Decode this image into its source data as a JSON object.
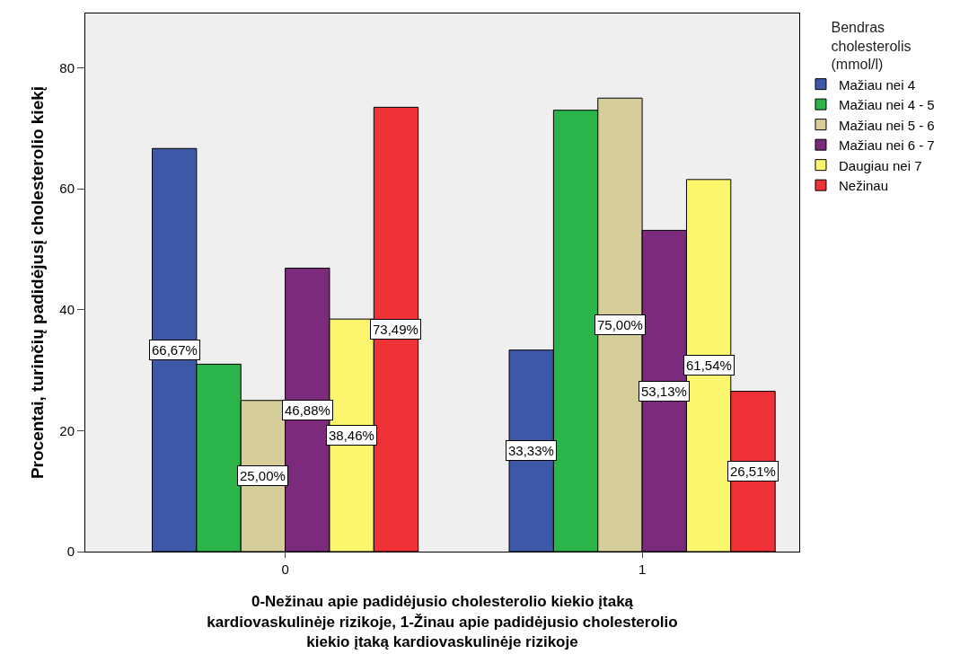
{
  "chart_data": {
    "type": "bar",
    "xlabel": "0-Nežinau apie padidėjusio cholesterolio kiekio įtaką\nkardiovaskulinėje rizikoje, 1-Žinau apie padidėjusio cholesterolio\nkiekio įtaką kardiovaskulinėje rizikoje",
    "ylabel": "Procentai, turinčių padidėjusį cholesterolio kiekį",
    "legend_title": "Bendras\ncholesterolis\n(mmol/l)",
    "categories": [
      "0",
      "1"
    ],
    "series": [
      {
        "name": "Mažiau nei 4",
        "color": "#3e58a8",
        "values": [
          66.67,
          33.33
        ],
        "value_labels": [
          "66,67%",
          "33,33%"
        ]
      },
      {
        "name": "Mažiau nei 4 - 5",
        "color": "#2bb44a",
        "values": [
          31,
          73
        ],
        "value_labels": [
          null,
          null
        ]
      },
      {
        "name": "Mažiau nei 5 - 6",
        "color": "#d5ce9a",
        "values": [
          25.0,
          75.0
        ],
        "value_labels": [
          "25,00%",
          "75,00%"
        ]
      },
      {
        "name": "Mažiau nei 6 - 7",
        "color": "#7b2a7c",
        "values": [
          46.88,
          53.13
        ],
        "value_labels": [
          "46,88%",
          "53,13%"
        ]
      },
      {
        "name": "Daugiau nei 7",
        "color": "#fcf66e",
        "values": [
          38.46,
          61.54
        ],
        "value_labels": [
          "38,46%",
          "61,54%"
        ]
      },
      {
        "name": "Nežinau",
        "color": "#ee3238",
        "values": [
          73.49,
          26.51
        ],
        "value_labels": [
          "73,49%",
          "26,51%"
        ]
      }
    ],
    "ylim": [
      0,
      89
    ],
    "yticks": [
      0,
      20,
      40,
      60,
      80
    ],
    "grid": false,
    "legend": "top right"
  }
}
